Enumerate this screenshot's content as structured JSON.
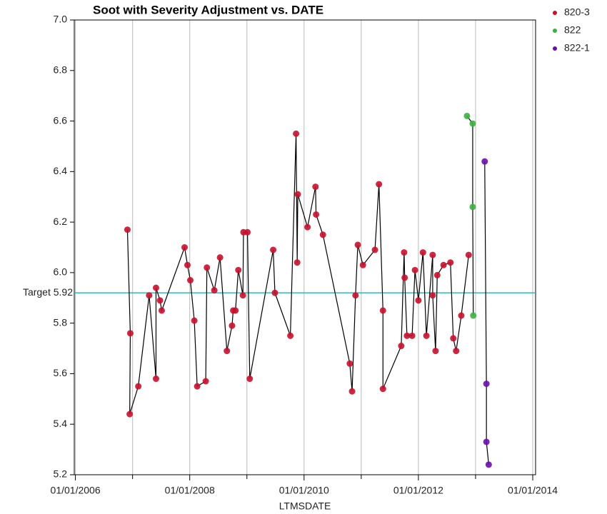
{
  "chart_data": {
    "type": "line",
    "title": "Soot with Severity Adjustment vs. DATE",
    "xlabel": "LTMSDATE",
    "xlim": [
      2005.98,
      2014.05
    ],
    "xticks": [
      {
        "value": 2006,
        "label": "01/01/2006"
      },
      {
        "value": 2008,
        "label": "01/01/2008"
      },
      {
        "value": 2010,
        "label": "01/01/2010"
      },
      {
        "value": 2012,
        "label": "01/01/2012"
      },
      {
        "value": 2014,
        "label": "01/01/2014"
      }
    ],
    "xminor": [
      2007,
      2009,
      2011,
      2013
    ],
    "ylim": [
      5.2,
      7.0
    ],
    "yticks": [
      5.2,
      5.4,
      5.6,
      5.8,
      {
        "value": 6,
        "label": "6.0"
      },
      6.2,
      6.4,
      6.6,
      6.8,
      {
        "value": 7,
        "label": "7.0"
      }
    ],
    "reference_line": {
      "value": 5.92,
      "label": "Target 5.92",
      "color": "#2bb3a8"
    },
    "line_color": "#000000",
    "series": [
      {
        "name": "820-3",
        "color": "#c8102e",
        "x": [
          2006.91,
          2006.96,
          2006.95,
          2007.1,
          2007.29,
          2007.41,
          2007.41,
          2007.48,
          2007.51,
          2007.91,
          2007.96,
          2008.01,
          2008.08,
          2008.13,
          2008.28,
          2008.3,
          2008.43,
          2008.53,
          2008.65,
          2008.74,
          2008.76,
          2008.8,
          2008.85,
          2008.93,
          2008.94,
          2009.01,
          2009.05,
          2009.46,
          2009.49,
          2009.76,
          2009.86,
          2009.88,
          2009.89,
          2010.06,
          2010.2,
          2010.21,
          2010.33,
          2010.8,
          2010.84,
          2010.9,
          2010.94,
          2011.03,
          2011.24,
          2011.31,
          2011.38,
          2011.38,
          2011.7,
          2011.75,
          2011.76,
          2011.8,
          2011.89,
          2011.94,
          2012.0,
          2012.08,
          2012.14,
          2012.25,
          2012.25,
          2012.3,
          2012.33,
          2012.44,
          2012.56,
          2012.61,
          2012.66,
          2012.75,
          2012.88
        ],
        "values": [
          6.17,
          5.76,
          5.44,
          5.55,
          5.91,
          5.58,
          5.94,
          5.89,
          5.85,
          6.1,
          6.03,
          5.97,
          5.81,
          5.55,
          5.57,
          6.02,
          5.93,
          6.06,
          5.69,
          5.79,
          5.85,
          5.85,
          6.01,
          5.91,
          6.16,
          6.16,
          5.58,
          6.09,
          5.92,
          5.75,
          6.55,
          6.04,
          6.31,
          6.18,
          6.34,
          6.23,
          6.15,
          5.64,
          5.53,
          5.91,
          6.11,
          6.03,
          6.09,
          6.35,
          5.85,
          5.54,
          5.71,
          6.08,
          5.98,
          5.75,
          5.75,
          6.01,
          5.89,
          6.08,
          5.75,
          6.07,
          5.91,
          5.69,
          5.99,
          6.03,
          6.04,
          5.74,
          5.69,
          5.83,
          6.07
        ]
      },
      {
        "name": "822",
        "color": "#3cb043",
        "x": [
          2012.85,
          2012.95,
          2012.95,
          2012.96
        ],
        "values": [
          6.62,
          6.59,
          6.26,
          5.83
        ]
      },
      {
        "name": "822-1",
        "color": "#6a0dad",
        "x": [
          2013.16,
          2013.19,
          2013.19,
          2013.23
        ],
        "values": [
          6.44,
          5.56,
          5.33,
          5.24
        ]
      }
    ]
  }
}
